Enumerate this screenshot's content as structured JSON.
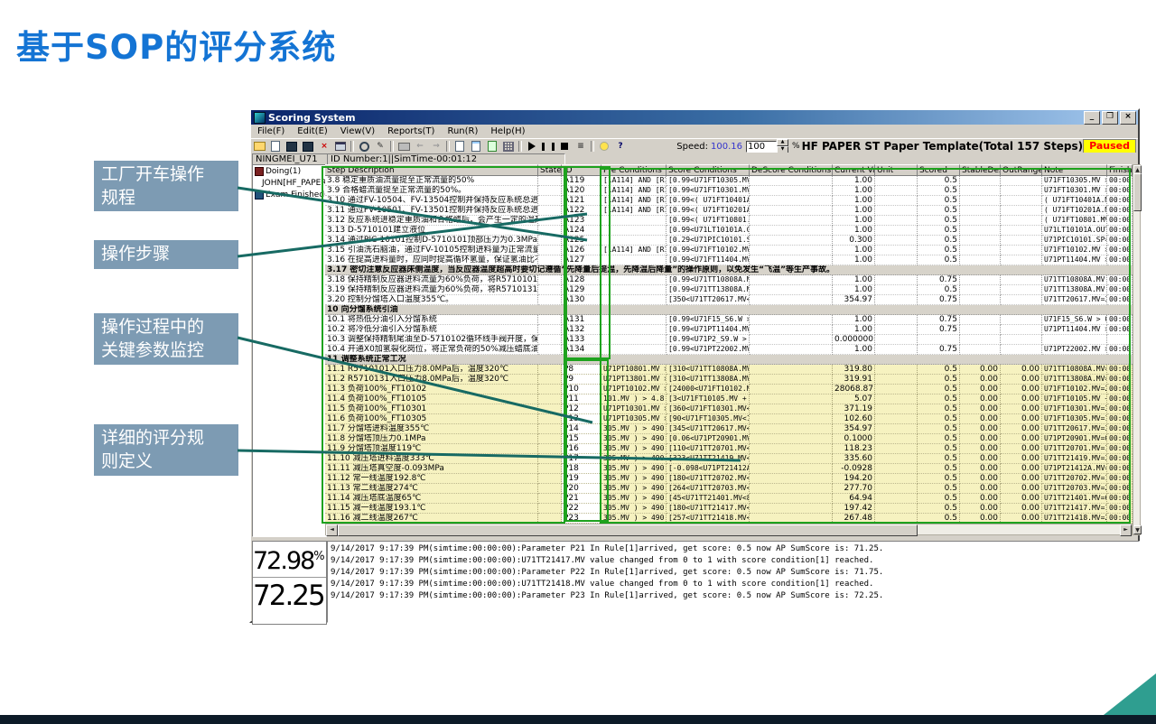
{
  "slide": {
    "title": "基于SOP的评分系统",
    "annotations": [
      {
        "lines": [
          "工厂开车操作",
          "规程"
        ]
      },
      {
        "lines": [
          "操作步骤"
        ]
      },
      {
        "lines": [
          "操作过程中的",
          "关键参数监控"
        ]
      },
      {
        "lines": [
          "详细的评分规",
          "则定义"
        ]
      }
    ],
    "colors": {
      "title_blue": "#1474d4",
      "label_bg": "#7d9bb3",
      "annotation_line": "#176a63",
      "highlight_green": "#1ea21e",
      "row_yellow": "#f6f2c0",
      "paused_bg": "#ffff00",
      "paused_fg": "#ff0000",
      "corner_teal": "#2f9e90",
      "footer_bar": "#0d1b28"
    }
  },
  "window": {
    "title": "Scoring System",
    "window_buttons": [
      "minimize",
      "restore",
      "close"
    ],
    "menus": [
      "File(F)",
      "Edit(E)",
      "View(V)",
      "Reports(T)",
      "Run(R)",
      "Help(H)"
    ],
    "toolbar_icons": [
      "open",
      "new",
      "save",
      "save-all",
      "delete",
      "window",
      "|",
      "zoom",
      "pencil",
      "|",
      "print",
      "back",
      "forward",
      "|",
      "doc-new",
      "doc-list",
      "doc-green",
      "flow",
      "|",
      "play",
      "pause",
      "stop",
      "steps",
      "|",
      "bulb",
      "help-pointer"
    ],
    "speed_label": "Speed:",
    "speed_value": "100.16",
    "speed_input": "100",
    "percent_label": "%",
    "template_title": "HF  PAPER  ST  Paper Template(Total 157 Steps)",
    "paused_label": "Paused",
    "status_left": "NINGMEI_U71",
    "status_right": "ID Number:1||SimTime-00:01:12",
    "tree": [
      {
        "label": "Doing(1)",
        "level": 0
      },
      {
        "label": "JOHN[HF_PAPER_S",
        "level": 1
      },
      {
        "label": "Exam Finished(0)",
        "level": 0
      }
    ],
    "score_top": "72.98",
    "score_top_unit": "%",
    "score_bottom": "72.25",
    "log_lines": [
      "9/14/2017 9:17:39 PM(simtime:00:00:00):Parameter P21 In Rule[1]arrived, get score: 0.5 now AP SumScore is: 71.25.",
      "9/14/2017 9:17:39 PM(simtime:00:00:00):U71TT21417.MV value changed from 0 to 1 with score condition[1] reached.",
      "9/14/2017 9:17:39 PM(simtime:00:00:00):Parameter P22 In Rule[1]arrived, get score: 0.5 now AP SumScore is: 71.75.",
      "9/14/2017 9:17:39 PM(simtime:00:00:00):U71TT21418.MV value changed from 0 to 1 with score condition[1] reached.",
      "9/14/2017 9:17:39 PM(simtime:00:00:00):Parameter P23 In Rule[1]arrived, get score: 0.5 now AP SumScore is: 72.25."
    ]
  },
  "table": {
    "columns": [
      "Step Description",
      "State",
      "ID",
      "Pre Conditions",
      "Score Conditions",
      "DeScore Conditions",
      "Current Va",
      "Unit",
      "Scored",
      "StableDesc",
      "OutRangeDe",
      "Note",
      "Finished"
    ],
    "rows": [
      {
        "kind": "w",
        "desc": "3.8 稳定重质油流量提至正常流量的50%",
        "id": "A119",
        "pre": "[1A114] AND [R1",
        "sc": "[0.99<U71FT10305.MV >",
        "dsc": "",
        "cur": "1.00",
        "unit": "",
        "scored": "0.5",
        "stable": "",
        "outr": "",
        "note": "U71FT10305.MV >",
        "fin": "00:00:00"
      },
      {
        "kind": "w",
        "desc": "3.9 合格蜡流量提至正常流量的50%。",
        "id": "A120",
        "pre": "[1A114] AND [R1",
        "sc": "[0.99<U71FT10301.MV >",
        "dsc": "",
        "cur": "1.00",
        "unit": "",
        "scored": "0.5",
        "stable": "",
        "outr": "",
        "note": "U71FT10301.MV >",
        "fin": "00:00:00"
      },
      {
        "kind": "w",
        "desc": "3.10 通过FV-10504、FV-13504控制并保持反应系统总进料量为设(",
        "id": "A121",
        "pre": "[1A114] AND [R1",
        "sc": "[0.99<( U71FT10401A.M",
        "dsc": "",
        "cur": "1.00",
        "unit": "",
        "scored": "0.5",
        "stable": "",
        "outr": "",
        "note": "( U71FT10401A.MV",
        "fin": "00:00:00"
      },
      {
        "kind": "w",
        "desc": "3.11 通过FV-10501、FV-13501控制并保持反应系统总进料量为设(",
        "id": "A122",
        "pre": "[1A114] AND [R1",
        "sc": "[0.99<( U71FT10201A.M",
        "dsc": "",
        "cur": "1.00",
        "unit": "",
        "scored": "0.5",
        "stable": "",
        "outr": "",
        "note": "( U71FT10201A.MV",
        "fin": "00:00:00"
      },
      {
        "kind": "w",
        "desc": "3.12 反应系统进稳定重质油和合格蜡后，会产生一定的温升。保持",
        "id": "A123",
        "pre": "",
        "sc": "[0.99<( U71FT10801.MV",
        "dsc": "",
        "cur": "1.00",
        "unit": "",
        "scored": "0.5",
        "stable": "",
        "outr": "",
        "note": "( U71FT10801.MV",
        "fin": "00:00:00"
      },
      {
        "kind": "w",
        "desc": "3.13 D-5710101建立液位",
        "id": "A124",
        "pre": "",
        "sc": "[0.99<U71LT10101A.OUT",
        "dsc": "",
        "cur": "1.00",
        "unit": "",
        "scored": "0.5",
        "stable": "",
        "outr": "",
        "note": "U71LT10101A.OUT",
        "fin": "00:00:00"
      },
      {
        "kind": "w",
        "desc": "3.14 通过PIC-10101控制D-5710101顶部压力为0.3MPa",
        "id": "A125",
        "pre": "",
        "sc": "[0.29<U71PIC10101.SP<",
        "dsc": "",
        "cur": "0.300",
        "unit": "",
        "scored": "0.5",
        "stable": "",
        "outr": "",
        "note": "U71PIC10101.SP=C",
        "fin": "00:00:00"
      },
      {
        "kind": "w",
        "desc": "3.15 引油洗石脑油，通过FV-10105控制进料量为正常流量的50%。",
        "id": "A126",
        "pre": "[1A114] AND [R1",
        "sc": "[0.99<U71FT10102.MV >",
        "dsc": "",
        "cur": "1.00",
        "unit": "",
        "scored": "0.5",
        "stable": "",
        "outr": "",
        "note": "U71FT10102.MV >",
        "fin": "00:00:00"
      },
      {
        "kind": "w",
        "desc": "3.16 在提高进料量时，应同时提高循环氢量，保证氢油比不低于设",
        "id": "A127",
        "pre": "",
        "sc": "[0.99<U71FT11404.MV >",
        "dsc": "",
        "cur": "1.00",
        "unit": "",
        "scored": "0.5",
        "stable": "",
        "outr": "",
        "note": "U71PT11404.MV >",
        "fin": "00:00:00"
      },
      {
        "kind": "wide",
        "desc": "3.17 密切注意反应器床侧温度，当反应器温度超高时要切记遵循“先降量后提温，先降温后降量”的操作原则，以免发生“飞温”等生产事故。"
      },
      {
        "kind": "w",
        "desc": "3.18 保持精制反应器进料流量为60%负荷，将R5710101的床层温度",
        "id": "A128",
        "pre": "",
        "sc": "[0.99<U71TT10808A.MV",
        "dsc": "",
        "cur": "1.00",
        "unit": "",
        "scored": "0.75",
        "stable": "",
        "outr": "",
        "note": "U71TT10808A.MV >",
        "fin": "00:00:00"
      },
      {
        "kind": "w",
        "desc": "3.19 保持精制反应器进料流量为60%负荷，将R5710131的床层温度",
        "id": "A129",
        "pre": "",
        "sc": "[0.99<U71TT13808A.MV",
        "dsc": "",
        "cur": "1.00",
        "unit": "",
        "scored": "0.5",
        "stable": "",
        "outr": "",
        "note": "U71TT13808A.MV >",
        "fin": "00:00:00"
      },
      {
        "kind": "w",
        "desc": "3.20 控制分馏塔入口温度355℃。",
        "id": "A130",
        "pre": "",
        "sc": "[350<U71TT20617.MV<36",
        "dsc": "",
        "cur": "354.97",
        "unit": "",
        "scored": "0.75",
        "stable": "",
        "outr": "",
        "note": "U71TT20617.MV=3E",
        "fin": "00:00:00"
      },
      {
        "kind": "s",
        "desc": "10 向分馏系统引油"
      },
      {
        "kind": "w",
        "desc": "10.1 将热低分油引入分馏系统",
        "id": "A131",
        "pre": "",
        "sc": "[0.99<U71F15_S6.W > 0",
        "dsc": "",
        "cur": "1.00",
        "unit": "",
        "scored": "0.75",
        "stable": "",
        "outr": "",
        "note": "U71F15_S6.W > 0.",
        "fin": "00:00:00"
      },
      {
        "kind": "w",
        "desc": "10.2 将冷低分油引入分馏系统",
        "id": "A132",
        "pre": "",
        "sc": "[0.99<U71PT11404.MV >",
        "dsc": "",
        "cur": "1.00",
        "unit": "",
        "scored": "0.75",
        "stable": "",
        "outr": "",
        "note": "U71PT11404.MV >",
        "fin": "00:00:00"
      },
      {
        "kind": "w",
        "desc": "10.3 调整保持精制尾油至D-5710102循环线手阀开度，保持循环油",
        "id": "A133",
        "pre": "",
        "sc": "[0.99<U71P2_S9.W > 10",
        "dsc": "",
        "cur": "0.000000",
        "unit": "",
        "scored": "",
        "stable": "",
        "outr": "",
        "note": "",
        "fin": ""
      },
      {
        "kind": "w",
        "desc": "10.4 开通X0加氢裂化岗位，将正常负荷的50%减压蜡底油送至加氢",
        "id": "A134",
        "pre": "",
        "sc": "[0.99<U71PT22002.MV >",
        "dsc": "",
        "cur": "1.00",
        "unit": "",
        "scored": "0.75",
        "stable": "",
        "outr": "",
        "note": "U71PT22002.MV >",
        "fin": "00:00:00"
      },
      {
        "kind": "s",
        "desc": "11 调整系统正常工况"
      },
      {
        "kind": "y",
        "desc": "11.1 R5710101入口压力8.0MPa后，温度320℃",
        "id": "P8",
        "pre": "U71PT10801.MV >",
        "sc": "[310<U71TT10808A.MV<3",
        "dsc": "",
        "cur": "319.80",
        "unit": "",
        "scored": "0.5",
        "stable": "0.00",
        "outr": "0.00",
        "note": "U71TT10808A.MV=3",
        "fin": "00:00:00"
      },
      {
        "kind": "y",
        "desc": "11.2 R5710131入口压力8.0MPa后，温度320℃",
        "id": "P9",
        "pre": "U71PT13801.MV >",
        "sc": "[310<U71TT13808A.MV<3",
        "dsc": "",
        "cur": "319.91",
        "unit": "",
        "scored": "0.5",
        "stable": "0.00",
        "outr": "0.00",
        "note": "U71TT13808A.MV=3",
        "fin": "00:00:00"
      },
      {
        "kind": "y",
        "desc": "11.3 负荷100%_FT10102",
        "id": "P10",
        "pre": "U71PT10102.MV >",
        "sc": "[24000<U71FT10102.MV<",
        "dsc": "",
        "cur": "28068.87",
        "unit": "",
        "scored": "0.5",
        "stable": "0.00",
        "outr": "0.00",
        "note": "U71FT10102.MV=2E",
        "fin": "00:00:00"
      },
      {
        "kind": "y",
        "desc": "11.4 负荷100%_FT10105",
        "id": "P11",
        "pre": "101.MV ) > 4.8",
        "sc": "[3<U71FT10105.MV + U7",
        "dsc": "",
        "cur": "5.07",
        "unit": "",
        "scored": "0.5",
        "stable": "0.00",
        "outr": "0.00",
        "note": "U71FT10105.MV +",
        "fin": "00:00:00"
      },
      {
        "kind": "y",
        "desc": "11.5 负荷100%_FT10301",
        "id": "P12",
        "pre": "U71PT10301.MV >",
        "sc": "[360<U71FT10301.MV<38",
        "dsc": "",
        "cur": "371.19",
        "unit": "",
        "scored": "0.5",
        "stable": "0.00",
        "outr": "0.00",
        "note": "U71FT10301.MV=37",
        "fin": "00:00:00"
      },
      {
        "kind": "y",
        "desc": "11.6 负荷100%_FT10305",
        "id": "P13",
        "pre": "U71PT10305.MV >",
        "sc": "[90<U71FT10305.MV<110",
        "dsc": "",
        "cur": "102.60",
        "unit": "",
        "scored": "0.5",
        "stable": "0.00",
        "outr": "0.00",
        "note": "U71FT10305.MV=10",
        "fin": "00:00:00"
      },
      {
        "kind": "y",
        "desc": "11.7 分馏塔进料温度355℃",
        "id": "P14",
        "pre": "305.MV ) > 490",
        "sc": "[345<U71TT20617.MV<36",
        "dsc": "",
        "cur": "354.97",
        "unit": "",
        "scored": "0.5",
        "stable": "0.00",
        "outr": "0.00",
        "note": "U71TT20617.MV=3E",
        "fin": "00:00:00"
      },
      {
        "kind": "y",
        "desc": "11.8 分馏塔顶压力0.1MPa",
        "id": "P15",
        "pre": "305.MV ) > 490",
        "sc": "[0.06<U71PT20901.MV<0",
        "dsc": "",
        "cur": "0.1000",
        "unit": "",
        "scored": "0.5",
        "stable": "0.00",
        "outr": "0.00",
        "note": "U71PT20901.MV=0.",
        "fin": "00:00:00"
      },
      {
        "kind": "y",
        "desc": "11.9 分馏塔顶温度119℃",
        "id": "P16",
        "pre": "305.MV ) > 490",
        "sc": "[110<U71TT20701.MV<13",
        "dsc": "",
        "cur": "118.23",
        "unit": "",
        "scored": "0.5",
        "stable": "0.00",
        "outr": "0.00",
        "note": "U71TT20701.MV=11",
        "fin": "00:00:00"
      },
      {
        "kind": "y",
        "desc": "11.10 减压塔进料温度333℃",
        "id": "P17",
        "pre": "305.MV ) > 490",
        "sc": "[323<U71TT21419.MV<34",
        "dsc": "",
        "cur": "335.60",
        "unit": "",
        "scored": "0.5",
        "stable": "0.00",
        "outr": "0.00",
        "note": "U71TT21419.MV=33",
        "fin": "00:00:00"
      },
      {
        "kind": "y",
        "desc": "11.11 减压塔真空度-0.093MPa",
        "id": "P18",
        "pre": "305.MV ) > 490",
        "sc": "[-0.098<U71PT21412A.M",
        "dsc": "",
        "cur": "-0.0928",
        "unit": "",
        "scored": "0.5",
        "stable": "0.00",
        "outr": "0.00",
        "note": "U71PT21412A.MV=-",
        "fin": "00:00:00"
      },
      {
        "kind": "y",
        "desc": "11.12 常一线温度192.8℃",
        "id": "P19",
        "pre": "305.MV ) > 490",
        "sc": "[180<U71TT20702.MV<20",
        "dsc": "",
        "cur": "194.20",
        "unit": "",
        "scored": "0.5",
        "stable": "0.00",
        "outr": "0.00",
        "note": "U71TT20702.MV=19",
        "fin": "00:00:00"
      },
      {
        "kind": "y",
        "desc": "11.13 常二线温度274℃",
        "id": "P20",
        "pre": "305.MV ) > 490",
        "sc": "[264<U71TT20703.MV<29",
        "dsc": "",
        "cur": "277.70",
        "unit": "",
        "scored": "0.5",
        "stable": "0.00",
        "outr": "0.00",
        "note": "U71TT20703.MV=27",
        "fin": "00:00:00"
      },
      {
        "kind": "y",
        "desc": "11.14 减压塔底温度65℃",
        "id": "P21",
        "pre": "305.MV ) > 490",
        "sc": "[45<U71TT21401.MV<80]",
        "dsc": "",
        "cur": "64.94",
        "unit": "",
        "scored": "0.5",
        "stable": "0.00",
        "outr": "0.00",
        "note": "U71TT21401.MV=64",
        "fin": "00:00:00"
      },
      {
        "kind": "y",
        "desc": "11.15 减一线温度193.1℃",
        "id": "P22",
        "pre": "305.MV ) > 490",
        "sc": "[180<U71TT21417.MV<21",
        "dsc": "",
        "cur": "197.42",
        "unit": "",
        "scored": "0.5",
        "stable": "0.00",
        "outr": "0.00",
        "note": "U71TT21417.MV=19",
        "fin": "00:00:00"
      },
      {
        "kind": "y",
        "desc": "11.16 减二线温度267℃",
        "id": "P23",
        "pre": "305.MV ) > 490",
        "sc": "[257<U71TT21418.MV<28",
        "dsc": "",
        "cur": "267.48",
        "unit": "",
        "scored": "0.5",
        "stable": "0.00",
        "outr": "0.00",
        "note": "U71TT21418.MV=26",
        "fin": "00:00:00"
      }
    ]
  }
}
